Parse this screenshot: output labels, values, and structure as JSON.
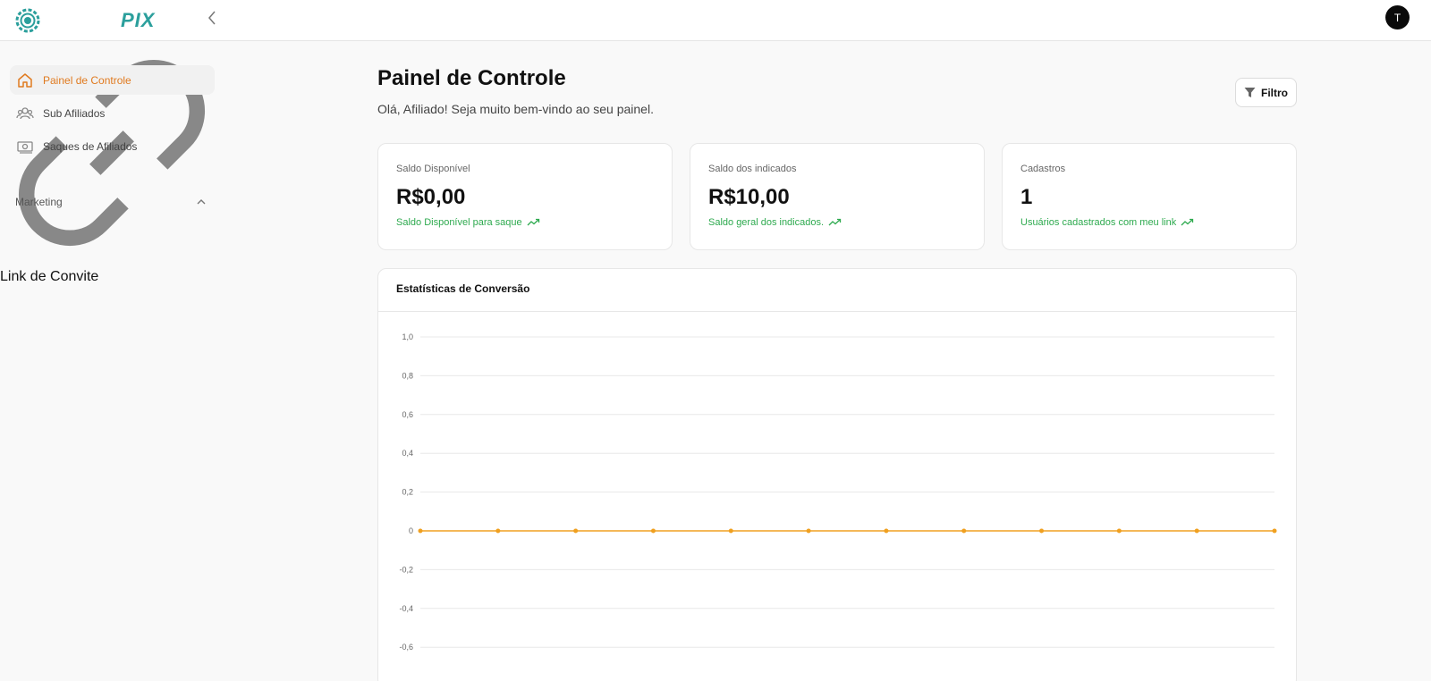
{
  "header": {
    "brand": "PIX",
    "avatar_initial": "T"
  },
  "sidebar": {
    "items": [
      {
        "label": "Painel de Controle",
        "icon": "home-icon",
        "active": true
      },
      {
        "label": "Sub Afiliados",
        "icon": "users-icon",
        "active": false
      },
      {
        "label": "Saques de Afiliados",
        "icon": "money-icon",
        "active": false
      }
    ],
    "section": {
      "label": "Marketing",
      "icon": "chevron-up-icon"
    },
    "section_items": [
      {
        "label": "Link de Convite",
        "icon": "link-icon"
      }
    ]
  },
  "main": {
    "title": "Painel de Controle",
    "subtitle": "Olá, Afiliado! Seja muito bem-vindo ao seu painel.",
    "filter_label": "Filtro",
    "cards": [
      {
        "label": "Saldo Disponível",
        "value": "R$0,00",
        "note": "Saldo Disponível para saque"
      },
      {
        "label": "Saldo dos indicados",
        "value": "R$10,00",
        "note": "Saldo geral dos indicados."
      },
      {
        "label": "Cadastros",
        "value": "1",
        "note": "Usuários cadastrados com meu link"
      }
    ]
  },
  "chart_title": "Estatísticas de Conversão",
  "colors": {
    "accent": "#e07a1f",
    "brand": "#2b9f9c",
    "positive": "#2eaa4f",
    "series": "#f0a020"
  },
  "chart_data": {
    "type": "line",
    "title": "Estatísticas de Conversão",
    "ylim": [
      -0.8,
      1.0
    ],
    "y_ticks": [
      "1,0",
      "0,8",
      "0,6",
      "0,4",
      "0,2",
      "0",
      "-0,2",
      "-0,4",
      "-0,6"
    ],
    "y_tick_values": [
      1.0,
      0.8,
      0.6,
      0.4,
      0.2,
      0,
      -0.2,
      -0.4,
      -0.6
    ],
    "grid": true,
    "series": [
      {
        "values": [
          0,
          0,
          0,
          0,
          0,
          0,
          0,
          0,
          0,
          0,
          0,
          0
        ]
      }
    ]
  }
}
